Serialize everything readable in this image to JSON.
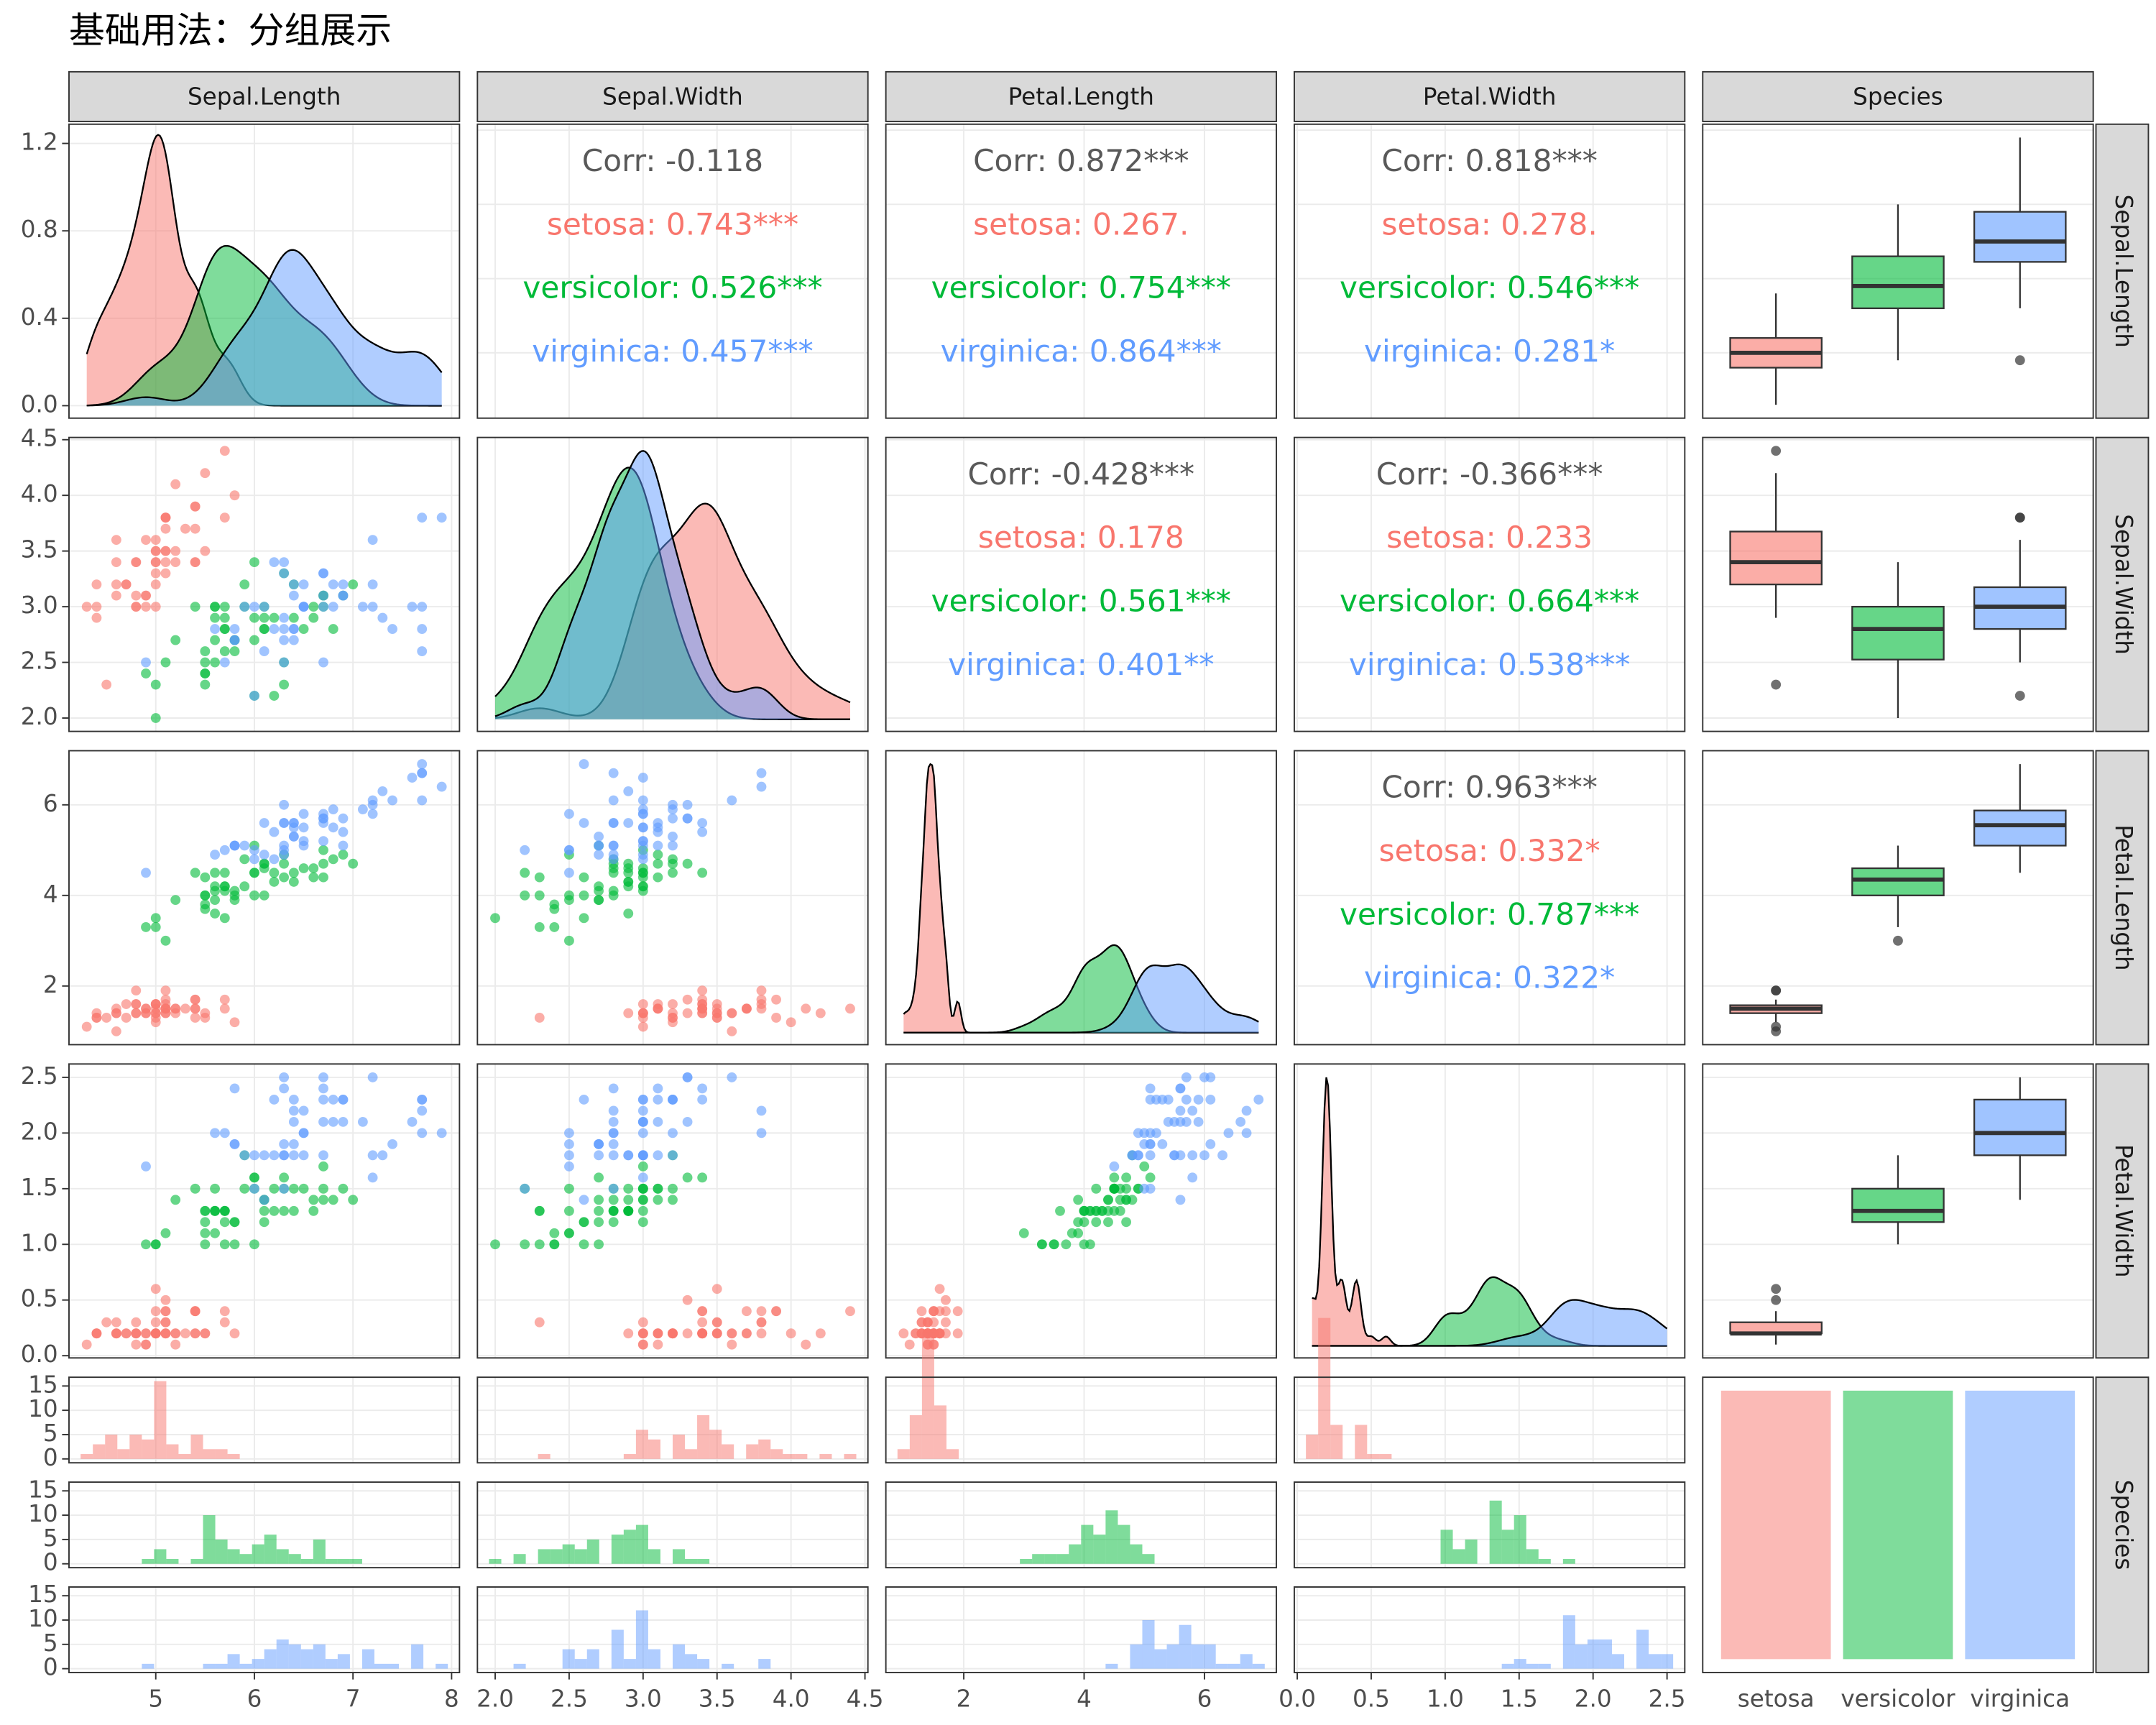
{
  "chart_data": {
    "type": "pairs",
    "title": "基础用法：分组展示",
    "variables": [
      "Sepal.Length",
      "Sepal.Width",
      "Petal.Length",
      "Petal.Width",
      "Species"
    ],
    "series": [
      {
        "name": "setosa",
        "color": "#F8766D",
        "values": [
          [
            5.1,
            4.9,
            4.7,
            4.6,
            5.0,
            5.4,
            4.6,
            5.0,
            4.4,
            4.9,
            5.4,
            4.8,
            4.8,
            4.3,
            5.8,
            5.7,
            5.4,
            5.1,
            5.7,
            5.1,
            5.4,
            5.1,
            4.6,
            5.1,
            4.8,
            5.0,
            5.0,
            5.2,
            5.2,
            4.7,
            4.8,
            5.4,
            5.2,
            5.5,
            4.9,
            5.0,
            5.5,
            4.9,
            4.4,
            5.1,
            5.0,
            4.5,
            4.4,
            5.0,
            5.1,
            4.8,
            5.1,
            4.6,
            5.3,
            5.0
          ],
          [
            3.5,
            3.0,
            3.2,
            3.1,
            3.6,
            3.9,
            3.4,
            3.4,
            2.9,
            3.1,
            3.7,
            3.4,
            3.0,
            3.0,
            4.0,
            4.4,
            3.9,
            3.5,
            3.8,
            3.8,
            3.4,
            3.7,
            3.6,
            3.3,
            3.4,
            3.0,
            3.4,
            3.5,
            3.4,
            3.2,
            3.1,
            3.4,
            4.1,
            4.2,
            3.1,
            3.2,
            3.5,
            3.6,
            3.0,
            3.4,
            3.5,
            2.3,
            3.2,
            3.5,
            3.8,
            3.0,
            3.8,
            3.2,
            3.7,
            3.3
          ],
          [
            1.4,
            1.4,
            1.3,
            1.5,
            1.4,
            1.7,
            1.4,
            1.5,
            1.4,
            1.5,
            1.5,
            1.6,
            1.4,
            1.1,
            1.2,
            1.5,
            1.3,
            1.4,
            1.7,
            1.5,
            1.7,
            1.5,
            1.0,
            1.7,
            1.9,
            1.6,
            1.6,
            1.5,
            1.4,
            1.6,
            1.6,
            1.5,
            1.5,
            1.4,
            1.5,
            1.2,
            1.3,
            1.4,
            1.3,
            1.5,
            1.3,
            1.3,
            1.3,
            1.6,
            1.9,
            1.4,
            1.6,
            1.4,
            1.5,
            1.4
          ],
          [
            0.2,
            0.2,
            0.2,
            0.2,
            0.2,
            0.4,
            0.3,
            0.2,
            0.2,
            0.1,
            0.2,
            0.2,
            0.1,
            0.1,
            0.2,
            0.4,
            0.4,
            0.3,
            0.3,
            0.3,
            0.2,
            0.4,
            0.2,
            0.5,
            0.2,
            0.2,
            0.4,
            0.2,
            0.2,
            0.2,
            0.2,
            0.4,
            0.1,
            0.2,
            0.2,
            0.2,
            0.2,
            0.1,
            0.2,
            0.2,
            0.3,
            0.3,
            0.2,
            0.6,
            0.4,
            0.3,
            0.2,
            0.2,
            0.2,
            0.2
          ]
        ]
      },
      {
        "name": "versicolor",
        "color": "#00BA38",
        "values": [
          [
            7.0,
            6.4,
            6.9,
            5.5,
            6.5,
            5.7,
            6.3,
            4.9,
            6.6,
            5.2,
            5.0,
            5.9,
            6.0,
            6.1,
            5.6,
            6.7,
            5.6,
            5.8,
            6.2,
            5.6,
            5.9,
            6.1,
            6.3,
            6.1,
            6.4,
            6.6,
            6.8,
            6.7,
            6.0,
            5.7,
            5.5,
            5.5,
            5.8,
            6.0,
            5.4,
            6.0,
            6.7,
            6.3,
            5.6,
            5.5,
            5.5,
            6.1,
            5.8,
            5.0,
            5.6,
            5.7,
            5.7,
            6.2,
            5.1,
            5.7
          ],
          [
            3.2,
            3.2,
            3.1,
            2.3,
            2.8,
            2.8,
            3.3,
            2.4,
            2.9,
            2.7,
            2.0,
            3.0,
            2.2,
            2.9,
            2.9,
            3.1,
            3.0,
            2.7,
            2.2,
            2.5,
            3.2,
            2.8,
            2.5,
            2.8,
            2.9,
            3.0,
            2.8,
            3.0,
            2.9,
            2.6,
            2.4,
            2.4,
            2.7,
            2.7,
            3.0,
            3.4,
            3.1,
            2.3,
            3.0,
            2.5,
            2.6,
            3.0,
            2.6,
            2.3,
            2.7,
            3.0,
            2.9,
            2.9,
            2.5,
            2.8
          ],
          [
            4.7,
            4.5,
            4.9,
            4.0,
            4.6,
            4.5,
            4.7,
            3.3,
            4.6,
            3.9,
            3.5,
            4.2,
            4.0,
            4.7,
            3.6,
            4.4,
            4.5,
            4.1,
            4.5,
            3.9,
            4.8,
            4.0,
            4.9,
            4.7,
            4.3,
            4.4,
            4.8,
            5.0,
            4.5,
            3.5,
            3.8,
            3.7,
            3.9,
            5.1,
            4.5,
            4.5,
            4.7,
            4.4,
            4.1,
            4.0,
            4.4,
            4.6,
            4.0,
            3.3,
            4.2,
            4.2,
            4.2,
            4.3,
            3.0,
            4.1
          ],
          [
            1.4,
            1.5,
            1.5,
            1.3,
            1.5,
            1.3,
            1.6,
            1.0,
            1.3,
            1.4,
            1.0,
            1.5,
            1.0,
            1.4,
            1.3,
            1.4,
            1.5,
            1.0,
            1.5,
            1.1,
            1.8,
            1.3,
            1.5,
            1.2,
            1.3,
            1.4,
            1.4,
            1.7,
            1.5,
            1.0,
            1.1,
            1.0,
            1.2,
            1.6,
            1.5,
            1.6,
            1.5,
            1.3,
            1.3,
            1.3,
            1.2,
            1.4,
            1.2,
            1.0,
            1.3,
            1.2,
            1.3,
            1.3,
            1.1,
            1.3
          ]
        ]
      },
      {
        "name": "virginica",
        "color": "#619CFF",
        "values": [
          [
            6.3,
            5.8,
            7.1,
            6.3,
            6.5,
            7.6,
            4.9,
            7.3,
            6.7,
            7.2,
            6.5,
            6.4,
            6.8,
            5.7,
            5.8,
            6.4,
            6.5,
            7.7,
            7.7,
            6.0,
            6.9,
            5.6,
            7.7,
            6.3,
            6.7,
            7.2,
            6.2,
            6.1,
            6.4,
            7.2,
            7.4,
            7.9,
            6.4,
            6.3,
            6.1,
            7.7,
            6.3,
            6.4,
            6.0,
            6.9,
            6.7,
            6.9,
            5.8,
            6.8,
            6.7,
            6.7,
            6.3,
            6.5,
            6.2,
            5.9
          ],
          [
            3.3,
            2.7,
            3.0,
            2.9,
            3.0,
            3.0,
            2.5,
            2.9,
            2.5,
            3.6,
            3.2,
            2.7,
            3.0,
            2.5,
            2.8,
            3.2,
            3.0,
            3.8,
            2.6,
            2.2,
            3.2,
            2.8,
            2.8,
            2.7,
            3.3,
            3.2,
            2.8,
            3.0,
            2.8,
            3.0,
            2.8,
            3.8,
            2.8,
            2.8,
            2.6,
            3.0,
            3.4,
            3.1,
            3.0,
            3.1,
            3.1,
            3.1,
            2.7,
            3.2,
            3.3,
            3.0,
            2.5,
            3.0,
            3.4,
            3.0
          ],
          [
            6.0,
            5.1,
            5.9,
            5.6,
            5.8,
            6.6,
            4.5,
            6.3,
            5.8,
            6.1,
            5.1,
            5.3,
            5.5,
            5.0,
            5.1,
            5.3,
            5.5,
            6.7,
            6.9,
            5.0,
            5.7,
            4.9,
            6.7,
            4.9,
            5.7,
            6.0,
            4.8,
            4.9,
            5.6,
            5.8,
            6.1,
            6.4,
            5.6,
            5.1,
            5.6,
            6.1,
            5.6,
            5.5,
            4.8,
            5.4,
            5.6,
            5.1,
            5.1,
            5.9,
            5.7,
            5.2,
            5.0,
            5.2,
            5.4,
            5.1
          ],
          [
            2.5,
            1.9,
            2.1,
            1.8,
            2.2,
            2.1,
            1.7,
            1.8,
            1.8,
            2.5,
            2.0,
            1.9,
            2.1,
            2.0,
            2.4,
            2.3,
            1.8,
            2.2,
            2.3,
            1.5,
            2.3,
            2.0,
            2.0,
            1.8,
            2.1,
            1.8,
            1.8,
            1.8,
            2.1,
            1.6,
            1.9,
            2.0,
            2.2,
            1.5,
            1.4,
            2.3,
            2.4,
            1.8,
            1.8,
            2.1,
            2.4,
            2.3,
            1.9,
            2.3,
            2.5,
            2.3,
            1.9,
            2.0,
            2.3,
            1.8
          ]
        ]
      }
    ],
    "axes": [
      {
        "lim": [
          4.12,
          8.08
        ],
        "ticks": [
          5,
          6,
          7,
          8
        ]
      },
      {
        "lim": [
          1.88,
          4.52
        ],
        "ticks": [
          {
            "value": 2,
            "label": "2.0"
          },
          2.5,
          {
            "value": 3,
            "label": "3.0"
          },
          3.5,
          {
            "value": 4,
            "label": "4.0"
          },
          4.5
        ]
      },
      {
        "lim": [
          0.705,
          7.195
        ],
        "ticks": [
          2,
          4,
          6
        ]
      },
      {
        "lim": [
          -0.02,
          2.62
        ],
        "ticks": [
          {
            "value": 0,
            "label": "0.0"
          },
          0.5,
          {
            "value": 1,
            "label": "1.0"
          },
          1.5,
          {
            "value": 2,
            "label": "2.0"
          },
          2.5
        ]
      }
    ],
    "density_ylim": [
      -0.057,
      1.288
    ],
    "density_yticks": [
      {
        "value": 0,
        "label": "0.0"
      },
      0.4,
      0.8,
      1.2
    ],
    "hist_ylim": [
      -0.8,
      16.8
    ],
    "hist_yticks": [
      0,
      5,
      10,
      15
    ],
    "correlations": [
      {
        "values": [
          -0.118,
          0.743,
          0.526,
          0.457
        ],
        "value_labels": [
          "Corr: -0.118",
          "setosa: 0.743***",
          "versicolor: 0.526***",
          "virginica: 0.457***"
        ]
      },
      {
        "values": [
          0.872,
          0.267,
          0.754,
          0.864
        ],
        "value_labels": [
          "Corr: 0.872***",
          "setosa: 0.267.",
          "versicolor: 0.754***",
          "virginica: 0.864***"
        ]
      },
      {
        "values": [
          0.818,
          0.278,
          0.546,
          0.281
        ],
        "value_labels": [
          "Corr: 0.818***",
          "setosa: 0.278.",
          "versicolor: 0.546***",
          "virginica: 0.281*"
        ]
      },
      {
        "values": [
          -0.428,
          0.178,
          0.561,
          0.401
        ],
        "value_labels": [
          "Corr: -0.428***",
          "setosa: 0.178",
          "versicolor: 0.561***",
          "virginica: 0.401**"
        ]
      },
      {
        "values": [
          -0.366,
          0.233,
          0.664,
          0.538
        ],
        "value_labels": [
          "Corr: -0.366***",
          "setosa: 0.233",
          "versicolor: 0.664***",
          "virginica: 0.538***"
        ]
      },
      {
        "values": [
          0.963,
          0.332,
          0.787,
          0.322
        ],
        "value_labels": [
          "Corr: 0.963***",
          "setosa: 0.332*",
          "versicolor: 0.787***",
          "virginica: 0.322*"
        ]
      }
    ]
  }
}
